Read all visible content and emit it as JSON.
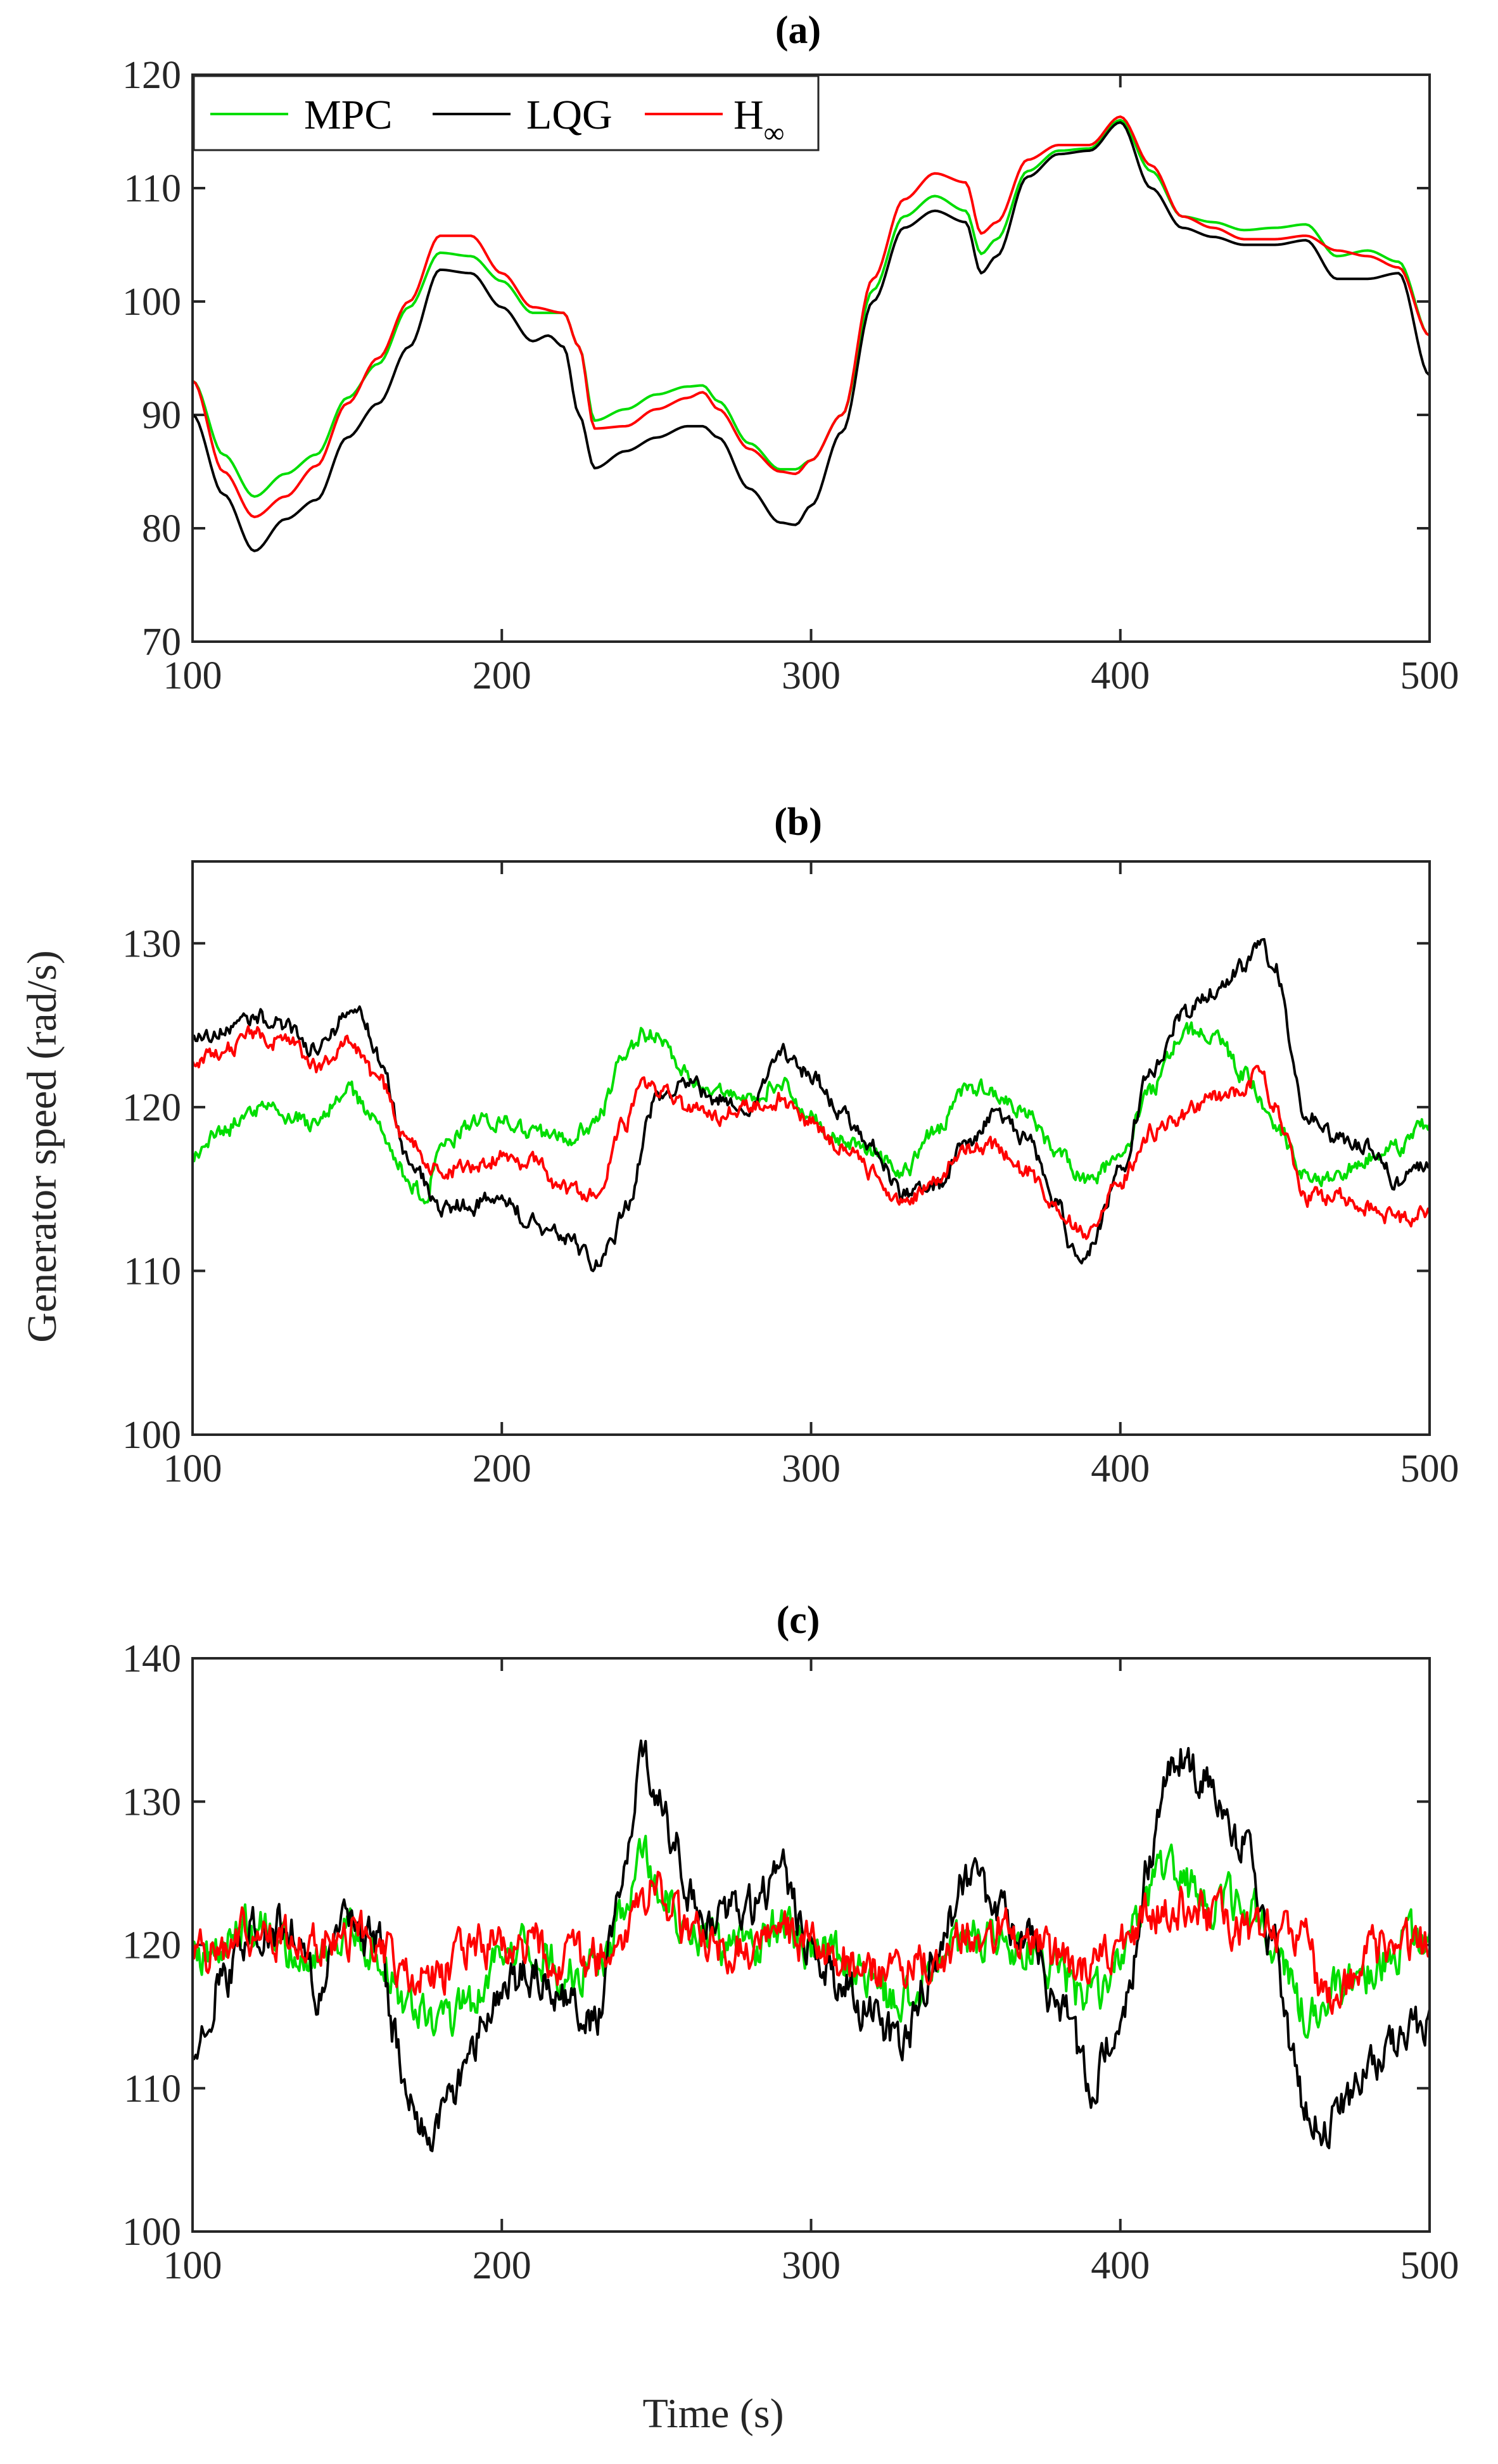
{
  "colors": {
    "MPC": "#00dd00",
    "LQG": "#000000",
    "H_inf": "#ff0000",
    "axes": "#262626"
  },
  "figure": {
    "ylabel": "Generator speed (rad/s)",
    "xlabel": "Time (s)"
  },
  "legend": {
    "MPC": "MPC",
    "LQG": "LQG",
    "H_inf_base": "H",
    "H_inf_sub": "∞"
  },
  "chart_data": [
    {
      "type": "line",
      "title": "(a)",
      "xlabel": "Time (s)",
      "ylabel": "Generator speed (rad/s)",
      "xlim": [
        100,
        500
      ],
      "ylim": [
        70,
        120
      ],
      "xticks": [
        100,
        200,
        300,
        400,
        500
      ],
      "yticks": [
        70,
        80,
        90,
        100,
        110,
        120
      ],
      "noise": 0,
      "series": [
        {
          "name": "MPC",
          "color_key": "MPC",
          "x": [
            100,
            110,
            120,
            130,
            140,
            150,
            160,
            170,
            180,
            190,
            200,
            210,
            220,
            225,
            230,
            240,
            250,
            260,
            265,
            270,
            280,
            290,
            295,
            300,
            310,
            320,
            330,
            340,
            350,
            355,
            360,
            370,
            380,
            390,
            400,
            410,
            420,
            430,
            440,
            450,
            460,
            470,
            480,
            490,
            500
          ],
          "y": [
            93,
            86.5,
            82.8,
            84.8,
            86.5,
            91.5,
            94.5,
            99.5,
            104.3,
            104,
            101.8,
            99,
            99,
            96,
            89.5,
            90.5,
            91.8,
            92.5,
            92.6,
            91.2,
            87.5,
            85.2,
            85.2,
            86,
            90,
            101,
            107.5,
            109.3,
            108,
            104.2,
            105.5,
            111.5,
            113.3,
            113.5,
            116,
            111.5,
            107.5,
            107,
            106.3,
            106.5,
            106.8,
            104,
            104.5,
            103.5,
            97
          ]
        },
        {
          "name": "LQG",
          "color_key": "LQG",
          "x": [
            100,
            110,
            120,
            130,
            140,
            150,
            160,
            170,
            180,
            190,
            200,
            210,
            215,
            220,
            225,
            230,
            240,
            250,
            260,
            265,
            270,
            280,
            290,
            295,
            300,
            310,
            320,
            330,
            340,
            350,
            355,
            360,
            370,
            380,
            390,
            400,
            410,
            420,
            430,
            440,
            450,
            460,
            470,
            480,
            490,
            500
          ],
          "y": [
            90,
            83,
            78,
            80.8,
            82.5,
            88,
            91,
            96,
            102.8,
            102.5,
            99.5,
            96.5,
            97,
            96,
            90,
            85.3,
            86.8,
            88,
            89,
            89,
            88,
            83.5,
            80.5,
            80.3,
            82,
            88.5,
            100,
            106.5,
            108,
            107,
            102.5,
            104,
            111,
            113,
            113.3,
            115.8,
            110,
            106.5,
            105.7,
            105,
            105,
            105.4,
            102,
            102,
            102.5,
            93.5
          ]
        },
        {
          "name": "H∞",
          "color_key": "H_inf",
          "x": [
            100,
            110,
            120,
            130,
            140,
            150,
            160,
            170,
            180,
            190,
            200,
            210,
            220,
            225,
            230,
            240,
            250,
            260,
            265,
            270,
            280,
            290,
            295,
            300,
            310,
            320,
            330,
            340,
            350,
            355,
            360,
            370,
            380,
            390,
            400,
            410,
            420,
            430,
            440,
            450,
            460,
            470,
            480,
            490,
            500
          ],
          "y": [
            93,
            85,
            81,
            82.8,
            85.5,
            91,
            95,
            100,
            105.8,
            105.8,
            102.5,
            99.5,
            99,
            96,
            88.8,
            89,
            90.5,
            91.5,
            92,
            90.5,
            87,
            85,
            84.8,
            86,
            90,
            102,
            109,
            111.3,
            110.5,
            106,
            107,
            112.5,
            113.8,
            113.8,
            116.3,
            112,
            107.5,
            106.5,
            105.5,
            105.5,
            105.8,
            104.5,
            104,
            103,
            97
          ]
        }
      ]
    },
    {
      "type": "line",
      "title": "(b)",
      "xlabel": "Time (s)",
      "ylabel": "Generator speed (rad/s)",
      "xlim": [
        100,
        500
      ],
      "ylim": [
        100,
        135
      ],
      "xticks": [
        100,
        200,
        300,
        400,
        500
      ],
      "yticks": [
        100,
        110,
        120,
        130
      ],
      "noise": 0.45,
      "series": [
        {
          "name": "MPC",
          "color_key": "MPC",
          "x": [
            100,
            110,
            120,
            130,
            140,
            150,
            160,
            165,
            170,
            175,
            180,
            190,
            200,
            210,
            220,
            230,
            240,
            245,
            250,
            260,
            270,
            280,
            290,
            300,
            310,
            320,
            330,
            340,
            350,
            360,
            370,
            380,
            390,
            400,
            410,
            420,
            430,
            440,
            450,
            460,
            470,
            480,
            490,
            500
          ],
          "y": [
            117,
            118.5,
            120,
            119.5,
            119,
            121,
            119,
            117,
            115.5,
            114.5,
            117.5,
            119,
            119.3,
            118.5,
            118,
            119,
            123,
            124.5,
            124.5,
            122,
            121,
            120.5,
            121.5,
            119.5,
            118,
            117,
            116,
            118.5,
            121,
            121,
            119.5,
            117,
            115.5,
            117,
            121,
            124.5,
            124.5,
            122,
            119,
            116,
            115.5,
            117,
            117.5,
            119
          ]
        },
        {
          "name": "LQG",
          "color_key": "LQG",
          "x": [
            100,
            110,
            120,
            130,
            140,
            150,
            155,
            160,
            170,
            180,
            190,
            200,
            210,
            220,
            230,
            235,
            240,
            250,
            260,
            270,
            280,
            290,
            300,
            310,
            320,
            330,
            340,
            350,
            360,
            370,
            380,
            385,
            390,
            400,
            410,
            420,
            430,
            440,
            445,
            450,
            460,
            470,
            480,
            490,
            500
          ],
          "y": [
            124,
            124.5,
            125.5,
            125,
            123.5,
            125.5,
            125.5,
            123,
            117,
            114,
            114,
            114.5,
            113,
            112,
            110.5,
            111.5,
            114,
            120.5,
            121.5,
            120.5,
            120,
            123.5,
            122,
            119.5,
            117.5,
            114.5,
            115,
            117.5,
            119.5,
            118,
            114,
            111,
            111.5,
            116,
            122.5,
            125.5,
            127,
            128.5,
            130,
            128.5,
            119.5,
            118,
            117.5,
            115.5,
            116.5
          ]
        },
        {
          "name": "H∞",
          "color_key": "H_inf",
          "x": [
            100,
            110,
            120,
            130,
            140,
            150,
            160,
            170,
            180,
            190,
            200,
            210,
            220,
            230,
            240,
            245,
            250,
            260,
            270,
            280,
            290,
            300,
            310,
            320,
            330,
            340,
            350,
            360,
            370,
            380,
            390,
            400,
            410,
            420,
            430,
            440,
            445,
            450,
            460,
            470,
            480,
            490,
            500
          ],
          "y": [
            123,
            123.5,
            124.5,
            124,
            122.5,
            124,
            121.5,
            118,
            116,
            116.5,
            117,
            116.5,
            115,
            114.5,
            119,
            121.5,
            121,
            120,
            119.5,
            120,
            120.5,
            119,
            117.5,
            116,
            114,
            115.5,
            117.5,
            117.5,
            116,
            113.5,
            112,
            115.5,
            118.5,
            119.5,
            120.5,
            121,
            122.5,
            120,
            114.5,
            114.5,
            114,
            113,
            113.5
          ]
        }
      ]
    },
    {
      "type": "line",
      "title": "(c)",
      "xlabel": "Time (s)",
      "ylabel": "Generator speed (rad/s)",
      "xlim": [
        100,
        500
      ],
      "ylim": [
        100,
        140
      ],
      "xticks": [
        100,
        200,
        300,
        400,
        500
      ],
      "yticks": [
        100,
        110,
        120,
        130,
        140
      ],
      "noise": 1.3,
      "series": [
        {
          "name": "MPC",
          "color_key": "MPC",
          "x": [
            100,
            110,
            120,
            130,
            140,
            150,
            160,
            170,
            180,
            190,
            200,
            210,
            220,
            230,
            240,
            245,
            250,
            260,
            270,
            280,
            290,
            300,
            310,
            320,
            330,
            340,
            350,
            360,
            370,
            380,
            390,
            400,
            410,
            415,
            420,
            430,
            440,
            450,
            460,
            465,
            470,
            480,
            490,
            500
          ],
          "y": [
            119,
            120,
            121,
            120,
            119,
            121,
            119.5,
            116,
            114,
            116,
            119,
            120,
            118,
            118,
            122,
            126.5,
            124,
            121,
            120,
            120,
            121,
            120,
            119,
            117,
            116,
            118,
            120,
            121,
            120,
            118,
            116,
            119,
            124,
            125.5,
            124,
            123,
            123,
            120,
            115.5,
            115,
            116.5,
            118,
            120,
            120
          ]
        },
        {
          "name": "LQG",
          "color_key": "LQG",
          "x": [
            100,
            110,
            120,
            130,
            140,
            150,
            160,
            165,
            170,
            175,
            178,
            185,
            190,
            200,
            210,
            220,
            230,
            240,
            245,
            250,
            255,
            260,
            270,
            280,
            290,
            300,
            310,
            320,
            330,
            340,
            350,
            360,
            370,
            380,
            390,
            400,
            410,
            415,
            420,
            430,
            440,
            450,
            455,
            460,
            465,
            470,
            480,
            490,
            500
          ],
          "y": [
            112,
            118,
            121,
            121.5,
            117,
            121,
            120,
            114,
            110,
            107,
            106,
            110,
            113,
            117,
            118,
            116,
            115,
            125,
            133,
            131.5,
            128,
            123.5,
            121.5,
            123,
            125,
            120,
            117,
            115,
            113,
            119,
            124,
            123,
            120,
            116,
            110.5,
            114,
            126,
            132.5,
            133,
            131,
            127,
            120,
            113,
            108.5,
            107,
            108.5,
            111,
            113,
            115
          ]
        },
        {
          "name": "H∞",
          "color_key": "H_inf",
          "x": [
            100,
            110,
            120,
            130,
            140,
            150,
            160,
            170,
            180,
            190,
            200,
            210,
            220,
            230,
            240,
            250,
            260,
            270,
            280,
            290,
            300,
            310,
            320,
            330,
            340,
            350,
            360,
            370,
            380,
            390,
            400,
            410,
            420,
            430,
            440,
            450,
            460,
            465,
            470,
            480,
            490,
            500
          ],
          "y": [
            119,
            120,
            121,
            120.5,
            120,
            121,
            120,
            118,
            118,
            120,
            120,
            120,
            119,
            119,
            121,
            124,
            121,
            120,
            120,
            121,
            120,
            119,
            118,
            118,
            119,
            121,
            121,
            120,
            119,
            118,
            120,
            122.5,
            123,
            122,
            121,
            121,
            121,
            117,
            116,
            119.5,
            120,
            120
          ]
        }
      ]
    }
  ]
}
